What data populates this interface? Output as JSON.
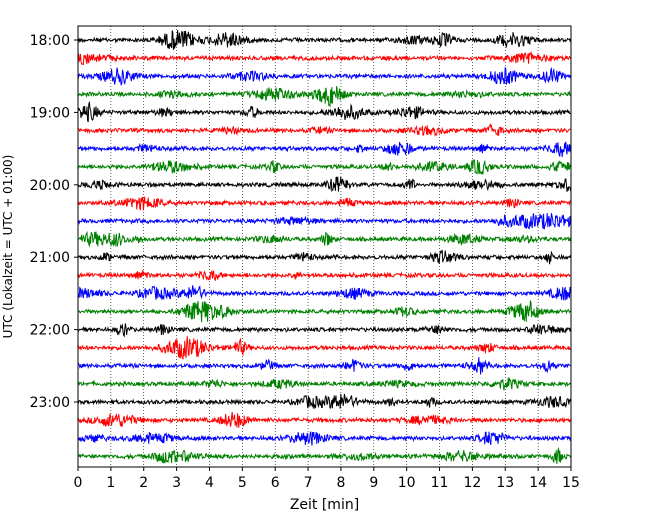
{
  "chart_data": {
    "type": "line",
    "xlabel": "Zeit  [min]",
    "ylabel": "UTC (Lokalzeit = UTC + 01:00)",
    "xlim": [
      0,
      15
    ],
    "x_ticks": [
      "0",
      "1",
      "2",
      "3",
      "4",
      "5",
      "6",
      "7",
      "8",
      "9",
      "10",
      "11",
      "12",
      "13",
      "14",
      "15"
    ],
    "y_ticks": [
      "18:00",
      "19:00",
      "20:00",
      "21:00",
      "22:00",
      "23:00"
    ],
    "grid": "x-dotted",
    "trace_interval_min": 15,
    "start_time": "18:00",
    "end_time": "23:45",
    "colors": [
      "#000000",
      "#ff0000",
      "#0000ff",
      "#008000"
    ],
    "series": [
      {
        "start": "18:00",
        "color": "#000000"
      },
      {
        "start": "18:15",
        "color": "#ff0000"
      },
      {
        "start": "18:30",
        "color": "#0000ff"
      },
      {
        "start": "18:45",
        "color": "#008000"
      },
      {
        "start": "19:00",
        "color": "#000000"
      },
      {
        "start": "19:15",
        "color": "#ff0000"
      },
      {
        "start": "19:30",
        "color": "#0000ff"
      },
      {
        "start": "19:45",
        "color": "#008000"
      },
      {
        "start": "20:00",
        "color": "#000000"
      },
      {
        "start": "20:15",
        "color": "#ff0000"
      },
      {
        "start": "20:30",
        "color": "#0000ff"
      },
      {
        "start": "20:45",
        "color": "#008000"
      },
      {
        "start": "21:00",
        "color": "#000000"
      },
      {
        "start": "21:15",
        "color": "#ff0000"
      },
      {
        "start": "21:30",
        "color": "#0000ff"
      },
      {
        "start": "21:45",
        "color": "#008000"
      },
      {
        "start": "22:00",
        "color": "#000000"
      },
      {
        "start": "22:15",
        "color": "#ff0000"
      },
      {
        "start": "22:30",
        "color": "#0000ff"
      },
      {
        "start": "22:45",
        "color": "#008000"
      },
      {
        "start": "23:00",
        "color": "#000000"
      },
      {
        "start": "23:15",
        "color": "#ff0000"
      },
      {
        "start": "23:30",
        "color": "#0000ff"
      },
      {
        "start": "23:45",
        "color": "#008000"
      }
    ]
  }
}
